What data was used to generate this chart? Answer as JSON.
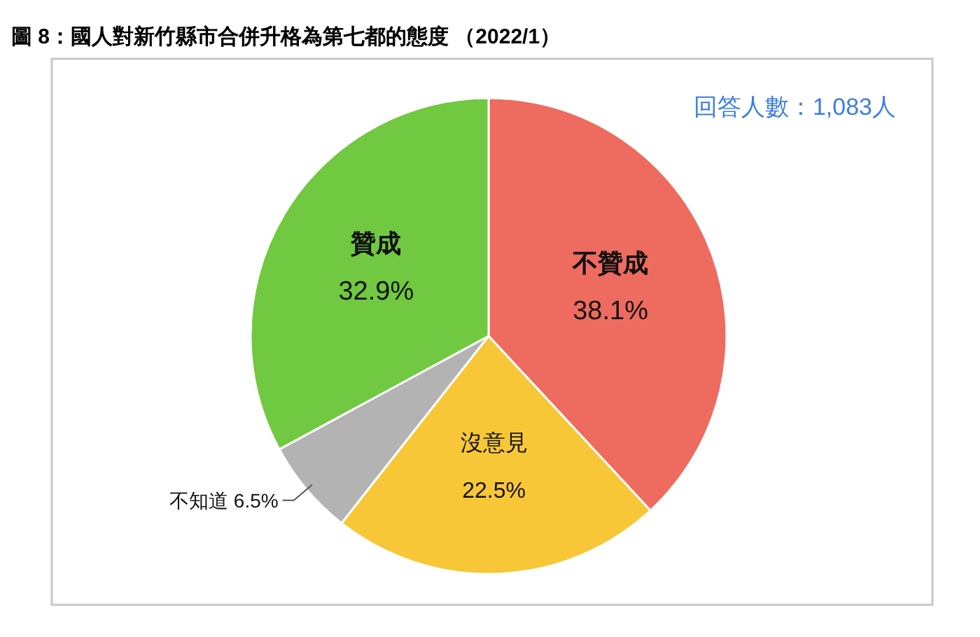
{
  "chart_data": {
    "type": "pie",
    "title": "圖 8：國人對新竹縣市合併升格為第七都的態度 （2022/1）",
    "categories": [
      "不贊成",
      "沒意見",
      "不知道",
      "贊成"
    ],
    "values": [
      38.1,
      22.5,
      6.5,
      32.9
    ],
    "value_labels": [
      "38.1%",
      "22.5%",
      "6.5%",
      "32.9%"
    ],
    "colors": [
      "#ee6b5f",
      "#f8c737",
      "#b3b3b3",
      "#70c940"
    ],
    "annotations": [
      "回答人數：1,083人"
    ],
    "legend": false
  }
}
